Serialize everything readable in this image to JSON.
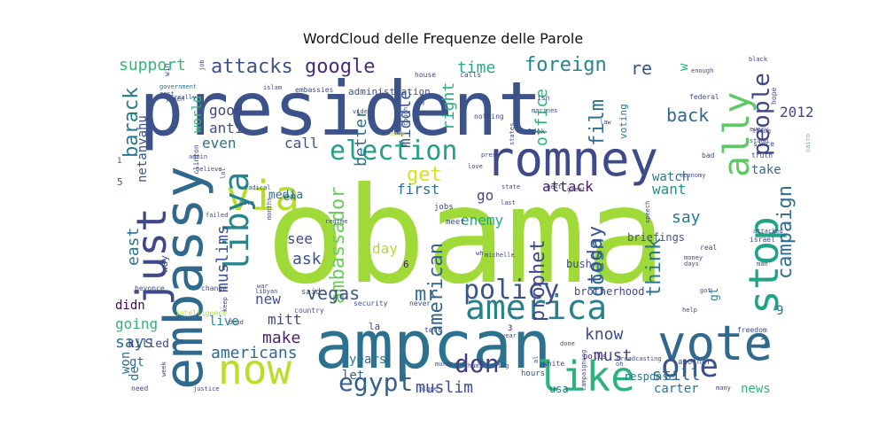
{
  "chart_data": {
    "type": "wordcloud",
    "title": "WordCloud delle Frequenze delle Parole",
    "words": [
      {
        "text": "obama",
        "weight": 100,
        "color": "#a0da39"
      },
      {
        "text": "president",
        "weight": 92,
        "color": "#3b528b"
      },
      {
        "text": "ampcan",
        "weight": 80,
        "color": "#2c728e"
      },
      {
        "text": "romney",
        "weight": 52,
        "color": "#3e4a89"
      },
      {
        "text": "vote",
        "weight": 50,
        "color": "#31688e"
      },
      {
        "text": "embassy",
        "weight": 55,
        "color": "#30698e"
      },
      {
        "text": "now",
        "weight": 46,
        "color": "#bade28"
      },
      {
        "text": "like",
        "weight": 46,
        "color": "#2db27d"
      },
      {
        "text": "via",
        "weight": 44,
        "color": "#b5de2b"
      },
      {
        "text": "stop",
        "weight": 44,
        "color": "#20a386"
      },
      {
        "text": "just",
        "weight": 44,
        "color": "#3f4889"
      },
      {
        "text": "ally",
        "weight": 40,
        "color": "#5ec962"
      },
      {
        "text": "america",
        "weight": 36,
        "color": "#26818e"
      },
      {
        "text": "libya",
        "weight": 36,
        "color": "#24868e"
      },
      {
        "text": "one",
        "weight": 34,
        "color": "#3b528b"
      },
      {
        "text": "election",
        "weight": 30,
        "color": "#1fa088"
      },
      {
        "text": "policy",
        "weight": 28,
        "color": "#3a538b"
      },
      {
        "text": "egypt",
        "weight": 28,
        "color": "#355f8d"
      },
      {
        "text": "don",
        "weight": 26,
        "color": "#433e85"
      },
      {
        "text": "people",
        "weight": 24,
        "color": "#404688"
      },
      {
        "text": "get",
        "weight": 22,
        "color": "#d8e219"
      },
      {
        "text": "campaign",
        "weight": 20,
        "color": "#2e6e8e"
      },
      {
        "text": "google",
        "weight": 20,
        "color": "#472c7a"
      },
      {
        "text": "foreign",
        "weight": 20,
        "color": "#25848e"
      },
      {
        "text": "attacks",
        "weight": 18,
        "color": "#3b528b"
      },
      {
        "text": "support",
        "weight": 17,
        "color": "#35b779"
      },
      {
        "text": "barack",
        "weight": 18,
        "color": "#2a788e"
      },
      {
        "text": "east",
        "weight": 17,
        "color": "#2c738e"
      },
      {
        "text": "muslims",
        "weight": 17,
        "color": "#3b528b"
      },
      {
        "text": "ambassador",
        "weight": 17,
        "color": "#6ccd5a"
      },
      {
        "text": "american",
        "weight": 17,
        "color": "#33638d"
      },
      {
        "text": "prophet",
        "weight": 18,
        "color": "#3e4989"
      },
      {
        "text": "doesn",
        "weight": 17,
        "color": "#2b758e"
      },
      {
        "text": "today",
        "weight": 17,
        "color": "#39568c"
      },
      {
        "text": "think",
        "weight": 17,
        "color": "#2a778e"
      },
      {
        "text": "film",
        "weight": 17,
        "color": "#2d708e"
      },
      {
        "text": "right",
        "weight": 16,
        "color": "#29af7f"
      },
      {
        "text": "middle",
        "weight": 16,
        "color": "#3a548c"
      },
      {
        "text": "better",
        "weight": 16,
        "color": "#2f6c8e"
      },
      {
        "text": "office",
        "weight": 16,
        "color": "#2eb37c"
      },
      {
        "text": "vegas",
        "weight": 20,
        "color": "#38588c"
      },
      {
        "text": "mr",
        "weight": 20,
        "color": "#2e6f8e"
      },
      {
        "text": "muslim",
        "weight": 17,
        "color": "#3d4d8a"
      },
      {
        "text": "know",
        "weight": 17,
        "color": "#3e4a89"
      },
      {
        "text": "must",
        "weight": 16,
        "color": "#3c4f8a"
      },
      {
        "text": "still",
        "weight": 16,
        "color": "#31688e"
      },
      {
        "text": "carter",
        "weight": 13,
        "color": "#2c718e"
      },
      {
        "text": "news",
        "weight": 13,
        "color": "#2fb47c"
      },
      {
        "text": "first",
        "weight": 15,
        "color": "#2e6e8e"
      },
      {
        "text": "attack",
        "weight": 15,
        "color": "#481a6c"
      },
      {
        "text": "go",
        "weight": 15,
        "color": "#3f4788"
      },
      {
        "text": "want",
        "weight": 14,
        "color": "#21918c"
      },
      {
        "text": "watch",
        "weight": 14,
        "color": "#2a788e"
      },
      {
        "text": "take",
        "weight": 14,
        "color": "#2f6c8e"
      },
      {
        "text": "say",
        "weight": 16,
        "color": "#2a778e"
      },
      {
        "text": "time",
        "weight": 16,
        "color": "#25ac82"
      },
      {
        "text": "re",
        "weight": 18,
        "color": "#3a548c"
      },
      {
        "text": "back",
        "weight": 17,
        "color": "#31678e"
      },
      {
        "text": "good",
        "weight": 14,
        "color": "#3f4788"
      },
      {
        "text": "anti",
        "weight": 14,
        "color": "#3b528b"
      },
      {
        "text": "even",
        "weight": 14,
        "color": "#2e6e8e"
      },
      {
        "text": "call",
        "weight": 14,
        "color": "#3b528b"
      },
      {
        "text": "world",
        "weight": 13,
        "color": "#35b779"
      },
      {
        "text": "enemy",
        "weight": 14,
        "color": "#23a983"
      },
      {
        "text": "day",
        "weight": 14,
        "color": "#b2dd2d"
      },
      {
        "text": "see",
        "weight": 14,
        "color": "#3f4788"
      },
      {
        "text": "ask",
        "weight": 14,
        "color": "#3b528b"
      },
      {
        "text": "new",
        "weight": 14,
        "color": "#3b528b"
      },
      {
        "text": "mitt",
        "weight": 14,
        "color": "#3e4989"
      },
      {
        "text": "make",
        "weight": 14,
        "color": "#481f70"
      },
      {
        "text": "americans",
        "weight": 14,
        "color": "#31688e"
      },
      {
        "text": "years",
        "weight": 12,
        "color": "#2c728e"
      },
      {
        "text": "let",
        "weight": 12,
        "color": "#33638d"
      },
      {
        "text": "says",
        "weight": 14,
        "color": "#2e6e8e"
      },
      {
        "text": "going",
        "weight": 13,
        "color": "#2eb37c"
      },
      {
        "text": "didn",
        "weight": 14,
        "color": "#440154"
      },
      {
        "text": "live",
        "weight": 13,
        "color": "#23888e"
      },
      {
        "text": "won",
        "weight": 13,
        "color": "#2e6e8e"
      },
      {
        "text": "gt",
        "weight": 14,
        "color": "#2c728e"
      },
      {
        "text": "killed",
        "weight": 12,
        "color": "#3e4a89"
      },
      {
        "text": "media",
        "weight": 11,
        "color": "#2c728e"
      },
      {
        "text": "en",
        "weight": 12,
        "color": "#2c728e"
      },
      {
        "text": "netanyahu",
        "weight": 11,
        "color": "#3b528b"
      },
      {
        "text": "de",
        "weight": 12,
        "color": "#2a788e"
      },
      {
        "text": "gt",
        "weight": 11,
        "color": "#25848e"
      },
      {
        "text": "brotherhood",
        "weight": 11,
        "color": "#3f4788"
      },
      {
        "text": "response",
        "weight": 11,
        "color": "#2a788e"
      },
      {
        "text": "bush",
        "weight": 11,
        "color": "#3f4889"
      },
      {
        "text": "voting",
        "weight": 11,
        "color": "#2a788e"
      },
      {
        "text": "briefings",
        "weight": 10,
        "color": "#3b528b"
      },
      {
        "text": "usa",
        "weight": 11,
        "color": "#2c728e"
      },
      {
        "text": "way",
        "weight": 11,
        "color": "#3b528b"
      },
      {
        "text": "administration",
        "weight": 10,
        "color": "#3b528b"
      },
      {
        "text": "2012",
        "weight": 10,
        "color": "#3f4788"
      },
      {
        "text": "2",
        "weight": 16,
        "color": "#31688e"
      },
      {
        "text": "9",
        "weight": 14,
        "color": "#31688e"
      },
      {
        "text": "w",
        "weight": 14,
        "color": "#2db27d"
      },
      {
        "text": "la",
        "weight": 14,
        "color": "#3e4989"
      },
      {
        "text": "6",
        "weight": 11,
        "color": "#481a6c"
      },
      {
        "text": "5",
        "weight": 11,
        "color": "#3b528b"
      },
      {
        "text": "1",
        "weight": 10,
        "color": "#3b528b"
      },
      {
        "text": "3",
        "weight": 9,
        "color": "#440154"
      },
      {
        "text": "tell",
        "weight": 9,
        "color": "#3e4989"
      },
      {
        "text": "jobs",
        "weight": 9,
        "color": "#3e4989"
      },
      {
        "text": "meet",
        "weight": 9,
        "color": "#3e4989"
      },
      {
        "text": "polls",
        "weight": 9,
        "color": "#481f70"
      },
      {
        "text": "another",
        "weight": 9,
        "color": "#3b528b"
      },
      {
        "text": "white",
        "weight": 8,
        "color": "#3e4989"
      },
      {
        "text": "hours",
        "weight": 9,
        "color": "#3b528b"
      },
      {
        "text": "said",
        "weight": 8,
        "color": "#3e4989"
      },
      {
        "text": "never",
        "weight": 9,
        "color": "#3e4989"
      },
      {
        "text": "security",
        "weight": 8,
        "color": "#3b528b"
      },
      {
        "text": "country",
        "weight": 8,
        "color": "#3b528b"
      },
      {
        "text": "intelligence",
        "weight": 8,
        "color": "#b5de2b"
      },
      {
        "text": "beyonce",
        "weight": 8,
        "color": "#3e4989"
      },
      {
        "text": "change",
        "weight": 8,
        "color": "#3e4989"
      },
      {
        "text": "clinton",
        "weight": 8,
        "color": "#3e4989"
      },
      {
        "text": "need",
        "weight": 8,
        "color": "#3e4989"
      },
      {
        "text": "freedom",
        "weight": 8,
        "color": "#3e4989"
      },
      {
        "text": "israel",
        "weight": 8,
        "color": "#3e4989"
      },
      {
        "text": "real",
        "weight": 8,
        "color": "#3e4989"
      },
      {
        "text": "win",
        "weight": 8,
        "color": "#3e4989"
      },
      {
        "text": "house",
        "weight": 8,
        "color": "#3e4989"
      },
      {
        "text": "calls",
        "weight": 8,
        "color": "#3e4989"
      },
      {
        "text": "federal",
        "weight": 8,
        "color": "#3e4989"
      },
      {
        "text": "embassies",
        "weight": 8,
        "color": "#3e4989"
      },
      {
        "text": "nothing",
        "weight": 8,
        "color": "#3e4989"
      },
      {
        "text": "isn",
        "weight": 8,
        "color": "#3e4989"
      },
      {
        "text": "look",
        "weight": 8,
        "color": "#3e4989"
      },
      {
        "text": "bad",
        "weight": 8,
        "color": "#3e4989"
      },
      {
        "text": "hope",
        "weight": 8,
        "color": "#3e4989"
      },
      {
        "text": "since",
        "weight": 8,
        "color": "#3e4989"
      },
      {
        "text": "truth",
        "weight": 8,
        "color": "#3e4989"
      },
      {
        "text": "black",
        "weight": 8,
        "color": "#3e4989"
      },
      {
        "text": "enough",
        "weight": 7,
        "color": "#3e4989"
      },
      {
        "text": "thing",
        "weight": 7,
        "color": "#3e4989"
      },
      {
        "text": "stand",
        "weight": 7,
        "color": "#3e4989"
      },
      {
        "text": "cairo",
        "weight": 7,
        "color": "#5ec962"
      },
      {
        "text": "government",
        "weight": 7,
        "color": "#2a788e"
      },
      {
        "text": "rest",
        "weight": 7,
        "color": "#3e4989"
      },
      {
        "text": "really",
        "weight": 7,
        "color": "#3e4989"
      },
      {
        "text": "islam",
        "weight": 7,
        "color": "#3e4989"
      },
      {
        "text": "video",
        "weight": 7,
        "color": "#3e4989"
      },
      {
        "text": "made",
        "weight": 7,
        "color": "#d8e219"
      },
      {
        "text": "pres",
        "weight": 7,
        "color": "#3e4989"
      },
      {
        "text": "love",
        "weight": 7,
        "color": "#3e4989"
      },
      {
        "text": "admin",
        "weight": 7,
        "color": "#3e4989"
      },
      {
        "text": "believe",
        "weight": 7,
        "color": "#3e4989"
      },
      {
        "text": "radical",
        "weight": 7,
        "color": "#3e4989"
      },
      {
        "text": "failed",
        "weight": 7,
        "color": "#3e4989"
      },
      {
        "text": "give",
        "weight": 7,
        "color": "#3e4989"
      },
      {
        "text": "regime",
        "weight": 7,
        "color": "#3e4989"
      },
      {
        "text": "state",
        "weight": 7,
        "color": "#3e4989"
      },
      {
        "text": "great",
        "weight": 7,
        "color": "#3e4989"
      },
      {
        "text": "economy",
        "weight": 7,
        "color": "#3e4989"
      },
      {
        "text": "speech",
        "weight": 7,
        "color": "#3e4989"
      },
      {
        "text": "attacked",
        "weight": 7,
        "color": "#3e4989"
      },
      {
        "text": "money",
        "weight": 7,
        "color": "#3e4989"
      },
      {
        "text": "days",
        "weight": 7,
        "color": "#3e4989"
      },
      {
        "text": "man",
        "weight": 7,
        "color": "#3e4989"
      },
      {
        "text": "got",
        "weight": 7,
        "color": "#3e4989"
      },
      {
        "text": "help",
        "weight": 7,
        "color": "#3e4989"
      },
      {
        "text": "broadcasting",
        "weight": 7,
        "color": "#3e4989"
      },
      {
        "text": "oh",
        "weight": 7,
        "color": "#3e4989"
      },
      {
        "text": "humiliating",
        "weight": 7,
        "color": "#3e4989"
      },
      {
        "text": "murdered",
        "weight": 7,
        "color": "#3e4989"
      },
      {
        "text": "blame",
        "weight": 7,
        "color": "#3e4989"
      },
      {
        "text": "many",
        "weight": 6,
        "color": "#3e4989"
      },
      {
        "text": "justice",
        "weight": 7,
        "color": "#3e4989"
      },
      {
        "text": "week",
        "weight": 7,
        "color": "#3e4989"
      },
      {
        "text": "dead",
        "weight": 7,
        "color": "#3e4989"
      },
      {
        "text": "keep",
        "weight": 6,
        "color": "#3e4989"
      },
      {
        "text": "libyan",
        "weight": 7,
        "color": "#3e4989"
      },
      {
        "text": "war",
        "weight": 6,
        "color": "#3e4989"
      },
      {
        "text": "months",
        "weight": 6,
        "color": "#3e4989"
      },
      {
        "text": "year",
        "weight": 6,
        "color": "#3e4989"
      },
      {
        "text": "campaigning",
        "weight": 6,
        "color": "#3e4989"
      },
      {
        "text": "done",
        "weight": 6,
        "color": "#3e4989"
      },
      {
        "text": "al",
        "weight": 6,
        "color": "#3e4989"
      },
      {
        "text": "wh",
        "weight": 6,
        "color": "#3e4989"
      },
      {
        "text": "michelle",
        "weight": 6,
        "color": "#3e4989"
      },
      {
        "text": "last",
        "weight": 6,
        "color": "#3e4989"
      },
      {
        "text": "next",
        "weight": 6,
        "color": "#3e4989"
      },
      {
        "text": "law",
        "weight": 6,
        "color": "#3e4989"
      },
      {
        "text": "states",
        "weight": 6,
        "color": "#3e4989"
      },
      {
        "text": "tough",
        "weight": 6,
        "color": "#3e4989"
      },
      {
        "text": "aid",
        "weight": 6,
        "color": "#3e4989"
      },
      {
        "text": "lol",
        "weight": 6,
        "color": "#3e4989"
      },
      {
        "text": "job",
        "weight": 6,
        "color": "#3e4989"
      },
      {
        "text": "yemen",
        "weight": 6,
        "color": "#3e4989"
      },
      {
        "text": "marines",
        "weight": 6,
        "color": "#3e4989"
      },
      {
        "text": "every",
        "weight": 6,
        "color": "#3e4989"
      },
      {
        "text": "ll",
        "weight": 6,
        "color": "#3e4989"
      },
      {
        "text": "d",
        "weight": 6,
        "color": "#3e4989"
      },
      {
        "text": "come",
        "weight": 6,
        "color": "#3e4989"
      },
      {
        "text": "much",
        "weight": 6,
        "color": "#3e4989"
      }
    ]
  }
}
